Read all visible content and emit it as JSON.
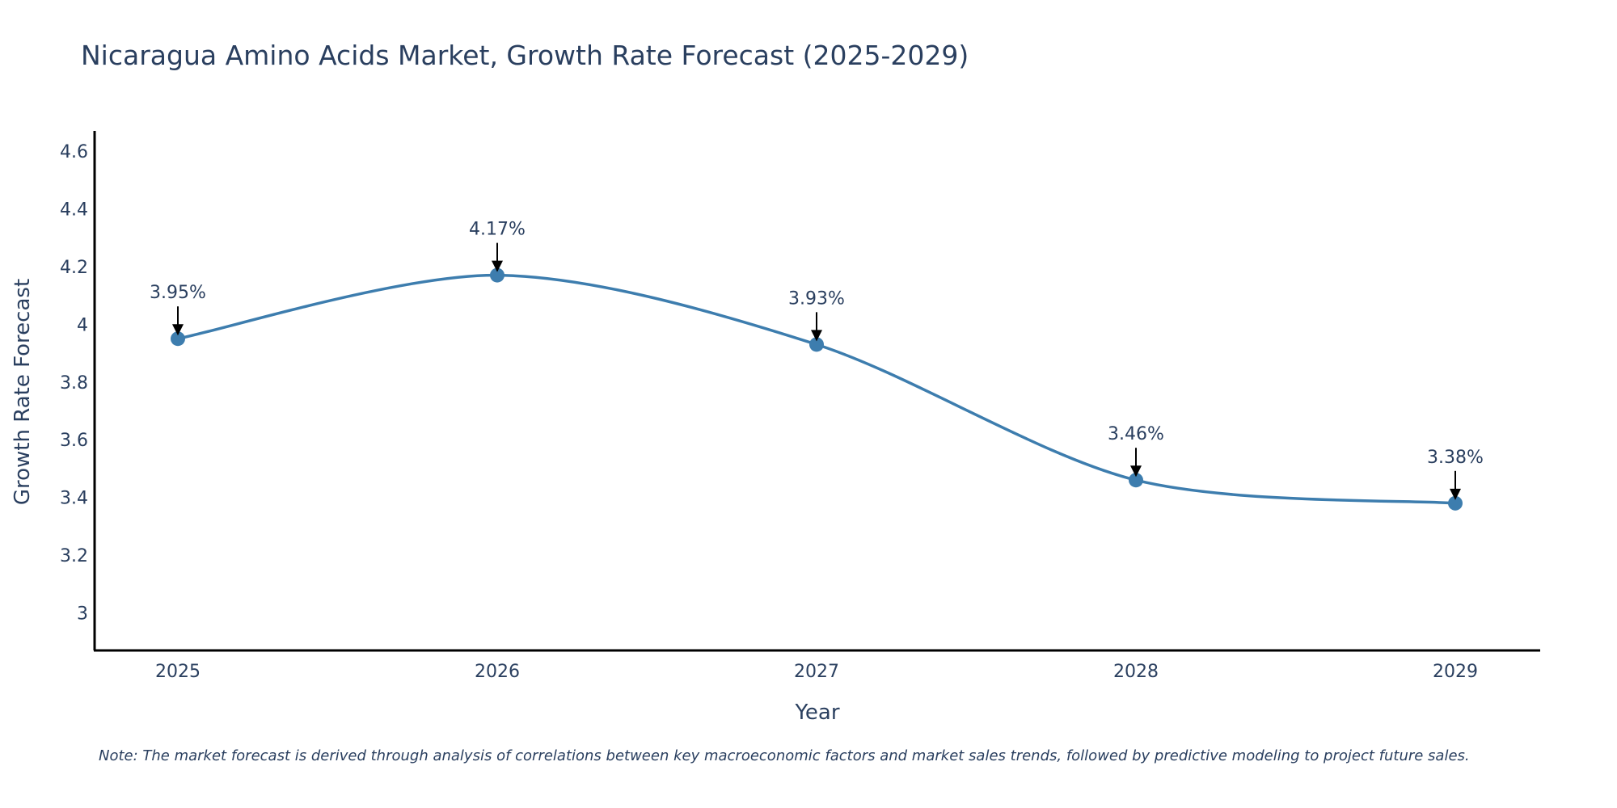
{
  "chart_data": {
    "type": "line",
    "title": "Nicaragua Amino Acids Market, Growth Rate Forecast (2025-2029)",
    "xlabel": "Year",
    "ylabel": "Growth Rate Forecast",
    "categories": [
      "2025",
      "2026",
      "2027",
      "2028",
      "2029"
    ],
    "values": [
      3.95,
      4.17,
      3.93,
      3.46,
      3.38
    ],
    "data_labels": [
      "3.95%",
      "4.17%",
      "3.93%",
      "3.46%",
      "3.38%"
    ],
    "yticks": [
      3,
      3.2,
      3.4,
      3.6,
      3.8,
      4,
      4.2,
      4.4,
      4.6
    ],
    "ytick_labels": [
      "3",
      "3.2",
      "3.4",
      "3.6",
      "3.8",
      "4",
      "4.2",
      "4.4",
      "4.6"
    ],
    "ylim": [
      2.87,
      4.67
    ],
    "grid": false,
    "line_shape": "spline",
    "series_color": "#3d7dae",
    "axis_color": "#000000",
    "note": "Note: The market forecast is derived through analysis of correlations between key macroeconomic factors and market sales trends, followed by predictive modeling to project future sales."
  }
}
